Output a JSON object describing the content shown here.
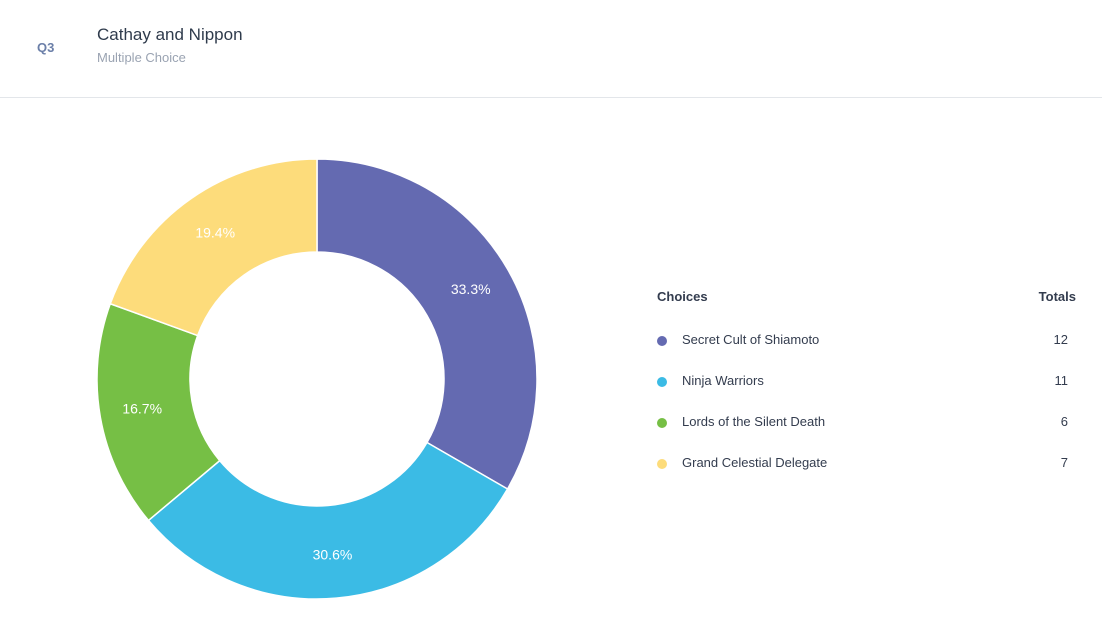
{
  "header": {
    "question_number": "Q3",
    "title": "Cathay and Nippon",
    "question_type": "Multiple Choice"
  },
  "legend": {
    "choices_heading": "Choices",
    "totals_heading": "Totals"
  },
  "colors": {
    "purple": "#646ab1",
    "cyan": "#3bbbe5",
    "green": "#76bf45",
    "yellow": "#fddc7b"
  },
  "chart_data": {
    "type": "pie",
    "variant": "donut",
    "title": "",
    "categories": [
      "Secret Cult of Shiamoto",
      "Ninja Warriors",
      "Lords of the Silent Death",
      "Grand Celestial Delegate"
    ],
    "values": [
      12,
      11,
      6,
      7
    ],
    "percent_labels": [
      "33.3%",
      "30.6%",
      "16.7%",
      "19.4%"
    ],
    "colors": [
      "#646ab1",
      "#3bbbe5",
      "#76bf45",
      "#fddc7b"
    ],
    "legend_position": "right"
  }
}
